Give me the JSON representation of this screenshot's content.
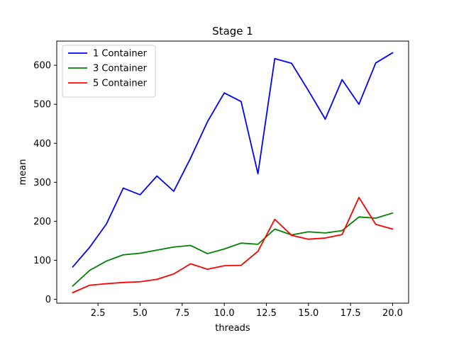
{
  "chart_data": {
    "type": "line",
    "title": "Stage 1",
    "xlabel": "threads",
    "ylabel": "mean",
    "xlim": [
      0.05,
      20.95
    ],
    "ylim": [
      -10,
      662
    ],
    "xticks": [
      2.5,
      5.0,
      7.5,
      10.0,
      12.5,
      15.0,
      17.5,
      20.0
    ],
    "xtick_labels": [
      "2.5",
      "5.0",
      "7.5",
      "10.0",
      "12.5",
      "15.0",
      "17.5",
      "20.0"
    ],
    "yticks": [
      0,
      100,
      200,
      300,
      400,
      500,
      600
    ],
    "ytick_labels": [
      "0",
      "100",
      "200",
      "300",
      "400",
      "500",
      "600"
    ],
    "grid": false,
    "legend_position": "top-left",
    "x": [
      1,
      2,
      3,
      4,
      5,
      6,
      7,
      8,
      9,
      10,
      11,
      12,
      13,
      14,
      15,
      16,
      17,
      18,
      19,
      20
    ],
    "series": [
      {
        "name": "1 Container",
        "color": "#0000ff",
        "values": [
          83,
          133,
          193,
          285,
          268,
          316,
          277,
          362,
          455,
          529,
          507,
          322,
          617,
          605,
          535,
          462,
          563,
          500,
          606,
          632
        ]
      },
      {
        "name": "3 Container",
        "color": "#008000",
        "values": [
          34,
          74,
          98,
          114,
          118,
          126,
          134,
          138,
          117,
          129,
          144,
          141,
          180,
          165,
          173,
          170,
          176,
          211,
          208,
          221
        ]
      },
      {
        "name": "5 Container",
        "color": "#ff0000",
        "values": [
          17,
          36,
          40,
          43,
          45,
          51,
          65,
          91,
          77,
          86,
          87,
          123,
          205,
          164,
          154,
          157,
          166,
          261,
          192,
          180
        ]
      }
    ]
  }
}
